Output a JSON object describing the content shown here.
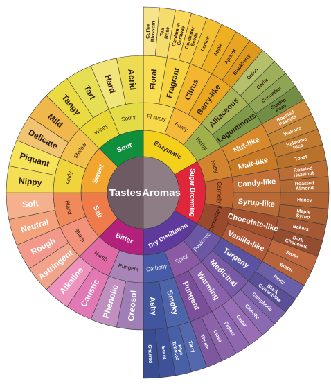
{
  "center": {
    "left_label": "Tastes",
    "right_label": "Aromas",
    "left_color": "#6d5a63",
    "right_color": "#8f7d86"
  },
  "tastes": [
    {
      "name": "Sour",
      "color": "#0f8f3c",
      "subs": [
        {
          "name": "Winey",
          "color": "#e8d634",
          "outer": [
            {
              "name": "Tangy",
              "color": "#e9db41"
            },
            {
              "name": "Tart",
              "color": "#e6df54"
            }
          ]
        },
        {
          "name": "Soury",
          "color": "#e3dc46",
          "outer": [
            {
              "name": "Hard",
              "color": "#f1e57a"
            },
            {
              "name": "Acrid",
              "color": "#eddc52"
            }
          ]
        }
      ]
    },
    {
      "name": "Sweet",
      "color": "#f2a630",
      "subs": [
        {
          "name": "Acidy",
          "color": "#f0d43c",
          "outer": [
            {
              "name": "Nippy",
              "color": "#f4de53"
            },
            {
              "name": "Piquant",
              "color": "#f6e35a"
            }
          ]
        },
        {
          "name": "Mellow",
          "color": "#f2c14c",
          "outer": [
            {
              "name": "Delicate",
              "color": "#f1c472"
            },
            {
              "name": "Mild",
              "color": "#f0b84a"
            }
          ]
        }
      ]
    },
    {
      "name": "Salt",
      "color": "#ef7b4a",
      "subs": [
        {
          "name": "Sharp",
          "color": "#f2927a",
          "outer": [
            {
              "name": "Astringent",
              "color": "#f1a48c"
            },
            {
              "name": "Rough",
              "color": "#f3998c"
            }
          ]
        },
        {
          "name": "Bland",
          "color": "#f08a5a",
          "outer": [
            {
              "name": "Neutral",
              "color": "#f3a27c"
            },
            {
              "name": "Soft",
              "color": "#f5b08e"
            }
          ]
        }
      ]
    },
    {
      "name": "Bitter",
      "color": "#b4217d",
      "subs": [
        {
          "name": "Pungent",
          "color": "#a785b8",
          "outer": [
            {
              "name": "Creosol",
              "color": "#9f7fb6"
            },
            {
              "name": "Phenolic",
              "color": "#c08fc0"
            }
          ]
        },
        {
          "name": "Harsh",
          "color": "#e06aa6",
          "outer": [
            {
              "name": "Caustic",
              "color": "#e278b4"
            },
            {
              "name": "Alkaline",
              "color": "#ec92bc"
            }
          ]
        }
      ]
    }
  ],
  "aromas": [
    {
      "name": "Enzymatic",
      "color": "#f3d11a",
      "subs": [
        {
          "name": "Flowery",
          "color": "#f7d84a",
          "outer": [
            {
              "name": "Floral",
              "color": "#f8dd52",
              "tips": [
                {
                  "name": "Coffee Blossom",
                  "color": "#f7e48a"
                },
                {
                  "name": "Tea Rose",
                  "color": "#f5dc6c"
                }
              ]
            },
            {
              "name": "Fragrant",
              "color": "#f6d23e",
              "tips": [
                {
                  "name": "Cardamon Caraway",
                  "color": "#f9d85a"
                },
                {
                  "name": "Coriander Seeds",
                  "color": "#f6cc46"
                }
              ]
            }
          ]
        },
        {
          "name": "Fruity",
          "color": "#f5b93a",
          "outer": [
            {
              "name": "Citrus",
              "color": "#f2b72e",
              "tips": [
                {
                  "name": "Lemon",
                  "color": "#f2c032"
                },
                {
                  "name": "Apple",
                  "color": "#eeb021"
                }
              ]
            },
            {
              "name": "Berry-like",
              "color": "#e9a81f",
              "tips": [
                {
                  "name": "Apricot",
                  "color": "#e8a521"
                },
                {
                  "name": "Blackberry",
                  "color": "#dd9a1f"
                }
              ]
            }
          ]
        },
        {
          "name": "Herby",
          "color": "#a0b04a",
          "outer": [
            {
              "name": "Alliaceous",
              "color": "#a6b455",
              "tips": [
                {
                  "name": "Onion",
                  "color": "#b5c06a"
                },
                {
                  "name": "Garlic",
                  "color": "#9faf59"
                }
              ]
            },
            {
              "name": "Leguminous",
              "color": "#7f9a49",
              "tips": [
                {
                  "name": "Cucumber",
                  "color": "#8fa454"
                },
                {
                  "name": "Garden Peas",
                  "color": "#728e45"
                }
              ]
            }
          ]
        }
      ]
    },
    {
      "name": "Sugar Browning",
      "color": "#e0263a",
      "subs": [
        {
          "name": "Nutty",
          "color": "#d2842e",
          "outer": [
            {
              "name": "Nut-like",
              "color": "#d8892c",
              "tips": [
                {
                  "name": "Roasted Peanuts",
                  "color": "#cf8a3c"
                },
                {
                  "name": "Walnuts",
                  "color": "#c68435"
                }
              ]
            },
            {
              "name": "Malt-like",
              "color": "#c97a27",
              "tips": [
                {
                  "name": "Balsamic Rice",
                  "color": "#c07b31"
                },
                {
                  "name": "Toast",
                  "color": "#b8722a"
                }
              ]
            }
          ]
        },
        {
          "name": "Carmelly",
          "color": "#c06630",
          "outer": [
            {
              "name": "Candy-like",
              "color": "#c17038",
              "tips": [
                {
                  "name": "Roasted Hazelnut",
                  "color": "#ba6d35"
                },
                {
                  "name": "Roasted Almond",
                  "color": "#b36a33"
                }
              ]
            },
            {
              "name": "Syrup-like",
              "color": "#b86a37",
              "tips": [
                {
                  "name": "Honey",
                  "color": "#af6332"
                },
                {
                  "name": "Maple Syrup",
                  "color": "#a95f31"
                }
              ]
            }
          ]
        },
        {
          "name": "Chocolatey",
          "color": "#9a4a2c",
          "outer": [
            {
              "name": "Chocolate-like",
              "color": "#a2512e",
              "tips": [
                {
                  "name": "Bakers",
                  "color": "#a45835"
                },
                {
                  "name": "Dark Chocolate",
                  "color": "#954d2f"
                }
              ]
            },
            {
              "name": "Vanilla-like",
              "color": "#b05a3a",
              "tips": [
                {
                  "name": "Swiss",
                  "color": "#c0683d"
                },
                {
                  "name": "Butter",
                  "color": "#b8643b"
                }
              ]
            }
          ]
        }
      ]
    },
    {
      "name": "Dry Distillation",
      "color": "#5d3a9c",
      "subs": [
        {
          "name": "Resinous",
          "color": "#6b57a4",
          "outer": [
            {
              "name": "Turpeny",
              "color": "#5c53a0",
              "tips": [
                {
                  "name": "Piney",
                  "color": "#6a5fa8"
                },
                {
                  "name": "Black Currant-like",
                  "color": "#5b4f9a"
                }
              ]
            },
            {
              "name": "Medicinal",
              "color": "#7a5aa6",
              "tips": [
                {
                  "name": "Camphoric",
                  "color": "#7c62aa"
                },
                {
                  "name": "Cineolic",
                  "color": "#8b6ab2"
                }
              ]
            }
          ]
        },
        {
          "name": "Spicy",
          "color": "#8a5aa5",
          "outer": [
            {
              "name": "Warming",
              "color": "#8c61ab",
              "tips": [
                {
                  "name": "Cedar",
                  "color": "#9a6eb6"
                },
                {
                  "name": "Pepper",
                  "color": "#8e67b0"
                }
              ]
            },
            {
              "name": "Pungent",
              "color": "#7c4f9c",
              "tips": [
                {
                  "name": "Clove",
                  "color": "#8c63aa"
                },
                {
                  "name": "Thyme",
                  "color": "#7d58a0"
                }
              ]
            }
          ]
        },
        {
          "name": "Carbony",
          "color": "#475ca8",
          "outer": [
            {
              "name": "Smoky",
              "color": "#4e64aa",
              "tips": [
                {
                  "name": "Tarry",
                  "color": "#5468ad"
                },
                {
                  "name": "Pipe Tobacco",
                  "color": "#4860a8"
                }
              ]
            },
            {
              "name": "Ashy",
              "color": "#4256a0",
              "tips": [
                {
                  "name": "Burnt",
                  "color": "#3f5299"
                },
                {
                  "name": "Charred",
                  "color": "#394d93"
                }
              ]
            }
          ]
        }
      ]
    }
  ]
}
